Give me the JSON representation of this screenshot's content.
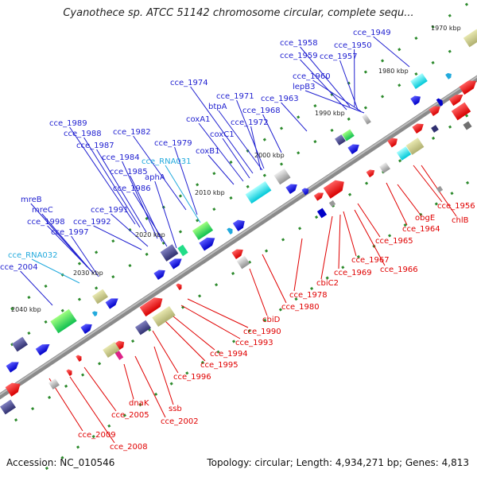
{
  "header": {
    "title": "Cyanothece sp. ATCC 51142 chromosome circular, complete sequ..."
  },
  "footer": {
    "accession": "Accession: NC_010546",
    "summary": "Topology: circular; Length: 4,934,271 bp; Genes: 4,813"
  },
  "colors": {
    "plus_label": "#1f1fd0",
    "minus_label": "#e00000",
    "rna_label": "#22aadd",
    "backbone": "#8a8a8a"
  },
  "kbp_ticks": [
    "1970 kbp",
    "1980 kbp",
    "1990 kbp",
    "2000 kbp",
    "2010 kbp",
    "2020 kbp",
    "2030 kbp",
    "2040 kbp"
  ],
  "plus_labels": [
    "cce_1949",
    "cce_1958",
    "cce_1950",
    "cce_1959",
    "cce_1957",
    "cce_1960",
    "lepB3",
    "cce_1963",
    "cce_1974",
    "cce_1971",
    "btpA",
    "cce_1968",
    "coxA1",
    "cce_1972",
    "coxC1",
    "coxB1",
    "cce_1982",
    "cce_1979",
    "cce_1989",
    "cce_1988",
    "cce_1987",
    "cce_1984",
    "cce_1985",
    "aphA",
    "cce_1986",
    "mreB",
    "mreC",
    "cce_1998",
    "cce_1997",
    "cce_1991",
    "cce_1992",
    "cce_2004"
  ],
  "rna_labels": [
    "cce_RNA031",
    "cce_RNA032"
  ],
  "minus_labels": [
    "cce_1956",
    "chlB",
    "obgE",
    "cce_1964",
    "cce_1965",
    "cce_1967",
    "cce_1966",
    "cce_1969",
    "cbiC2",
    "cce_1978",
    "cce_1980",
    "cbiD",
    "cce_1990",
    "cce_1993",
    "cce_1994",
    "cce_1995",
    "cce_1996",
    "ssb",
    "dnaK",
    "cce_2002",
    "cce_2005",
    "cce_2009",
    "cce_2008"
  ]
}
